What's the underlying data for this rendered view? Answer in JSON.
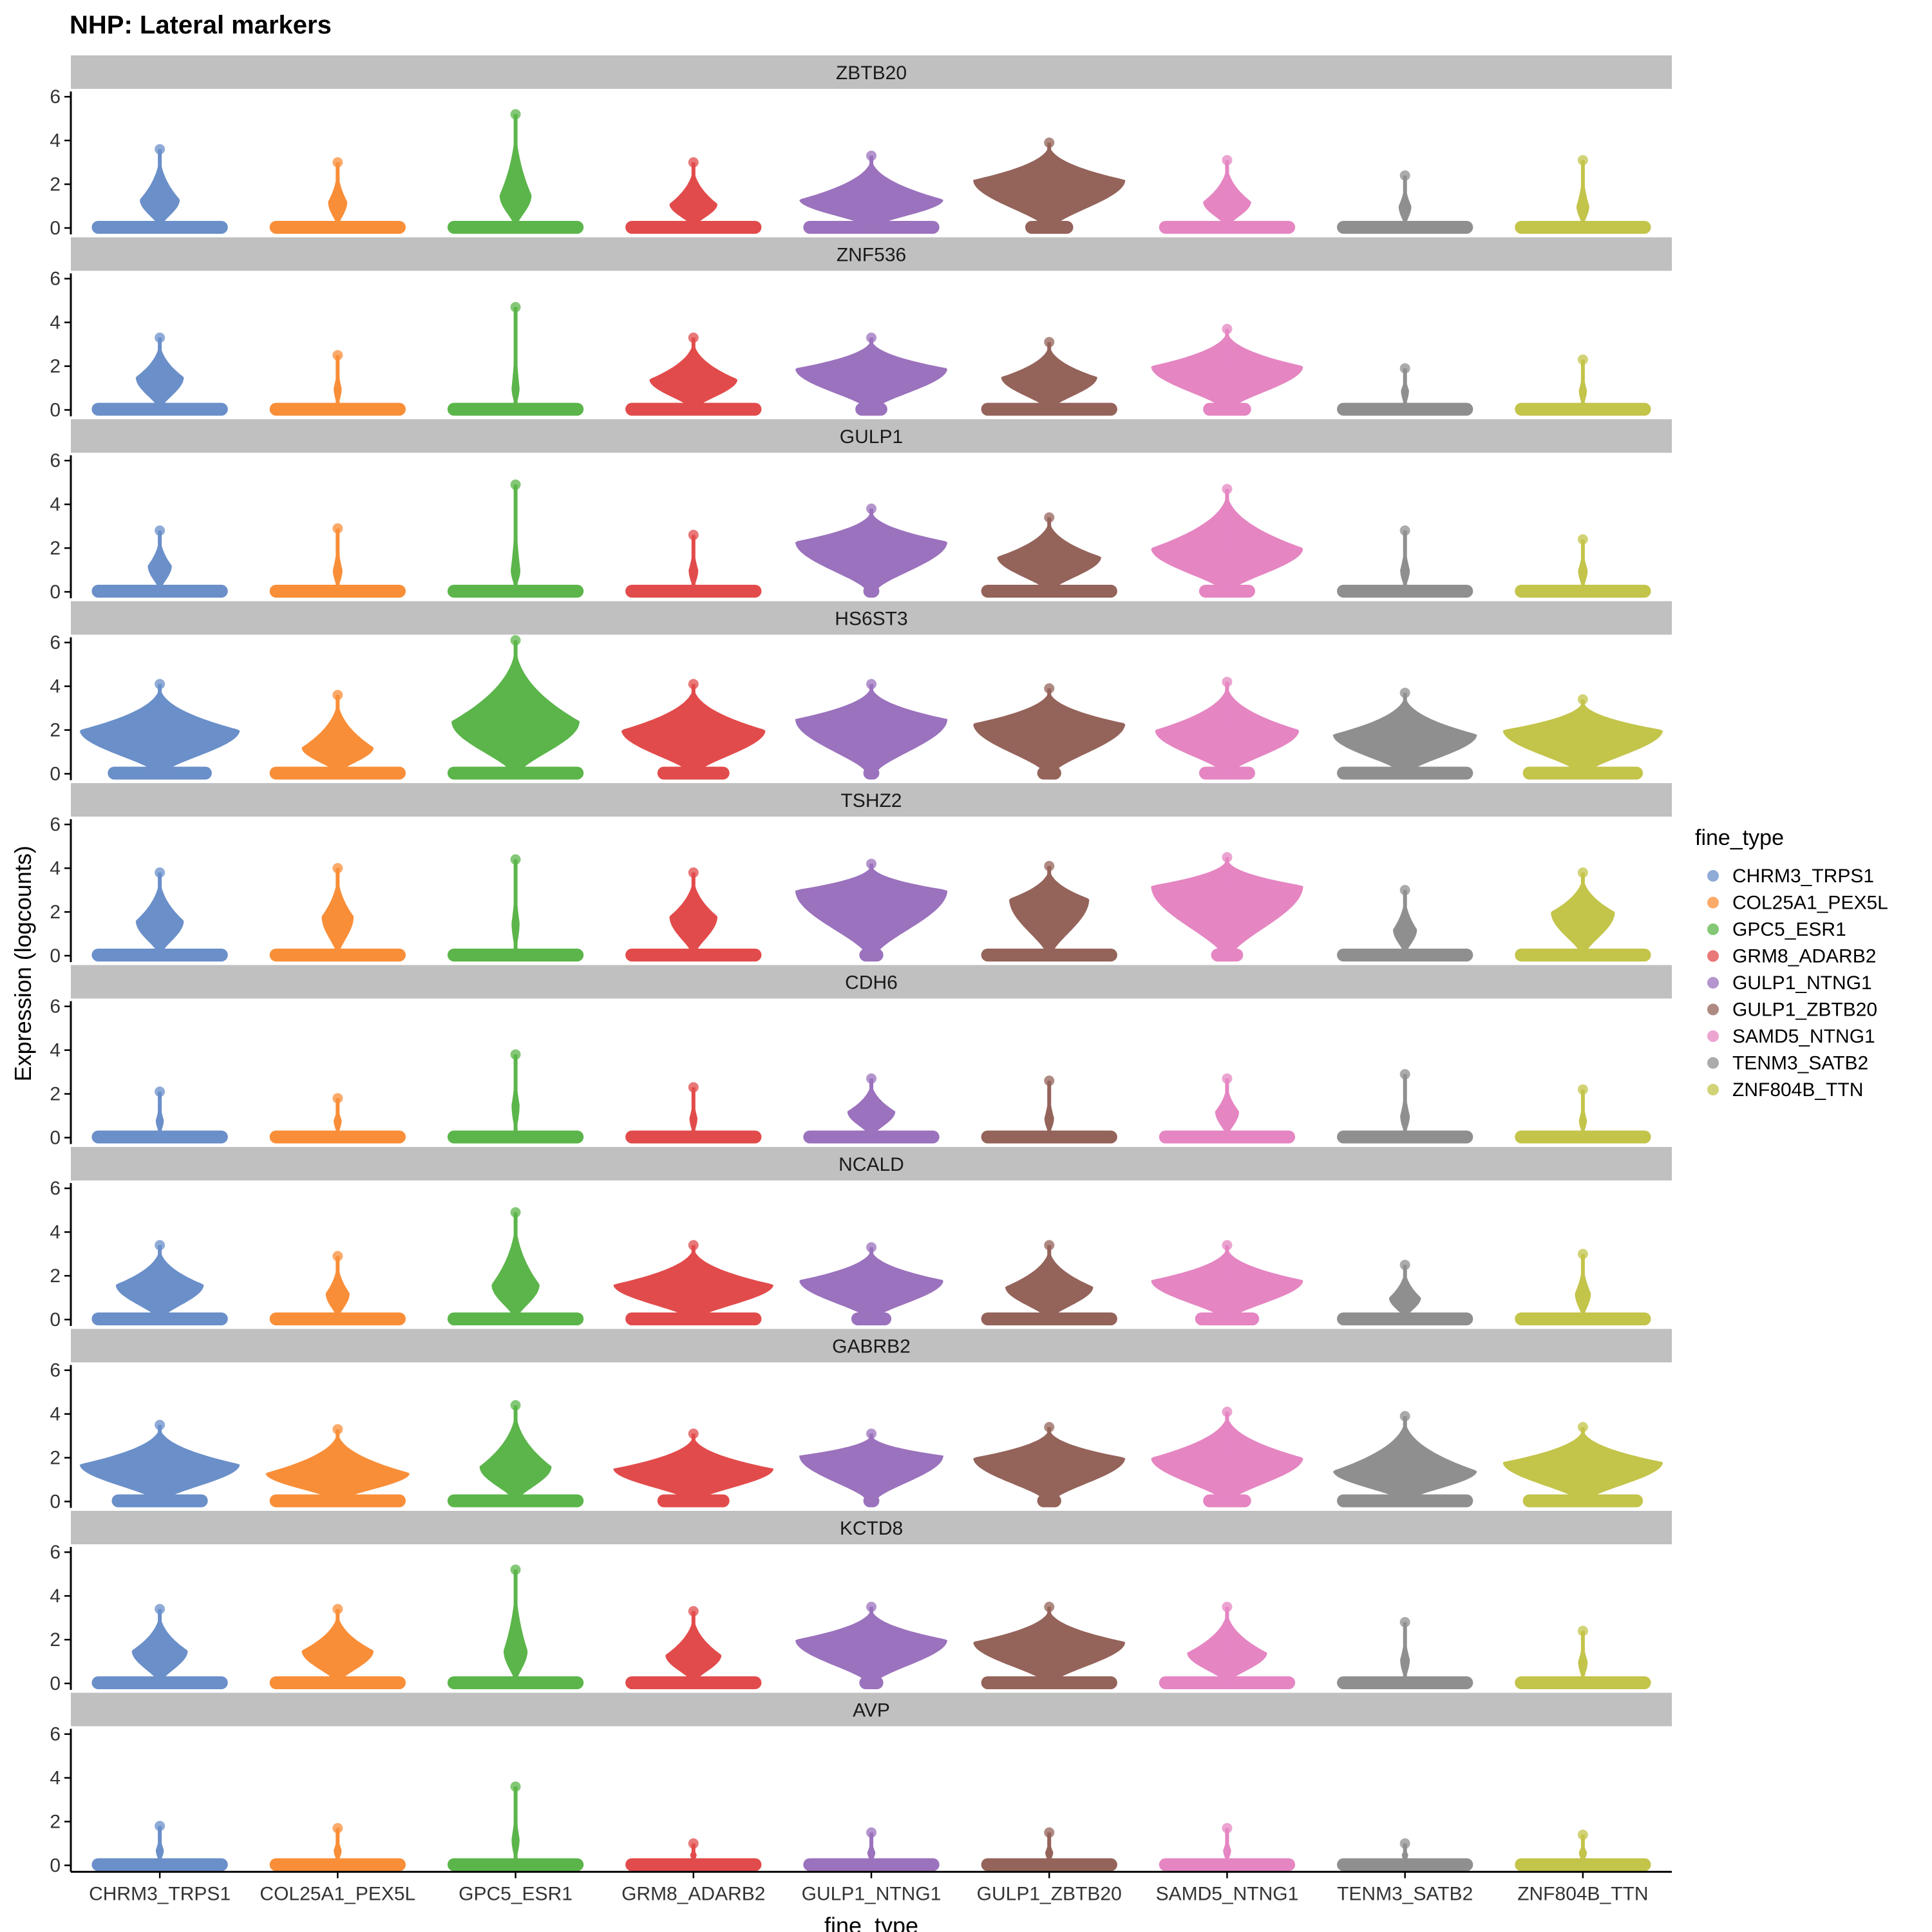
{
  "chart_data": {
    "type": "violin",
    "title": "NHP: Lateral markers",
    "xlabel": "fine_type",
    "ylabel": "Expression (logcounts)",
    "ylim": [
      0,
      6.3
    ],
    "yticks": [
      0,
      2,
      4,
      6
    ],
    "legend": {
      "title": "fine_type",
      "position": "right"
    },
    "categories": [
      "CHRM3_TRPS1",
      "COL25A1_PEX5L",
      "GPC5_ESR1",
      "GRM8_ADARB2",
      "GULP1_NTNG1",
      "GULP1_ZBTB20",
      "SAMD5_NTNG1",
      "TENM3_SATB2",
      "ZNF804B_TTN"
    ],
    "colors": [
      "#6a8fc9",
      "#f98e38",
      "#5bb54a",
      "#e24b4b",
      "#9b72bd",
      "#94635a",
      "#e585c2",
      "#8f8f8f",
      "#c3c44a"
    ],
    "panels": [
      {
        "gene": "ZBTB20",
        "violins": [
          {
            "max": 3.6,
            "mode": 1.3,
            "width": 0.25,
            "zero_width": 0.85
          },
          {
            "max": 3.0,
            "mode": 1.2,
            "width": 0.12,
            "zero_width": 0.85
          },
          {
            "max": 5.2,
            "mode": 1.5,
            "width": 0.2,
            "zero_width": 0.85
          },
          {
            "max": 3.0,
            "mode": 1.1,
            "width": 0.3,
            "zero_width": 0.85
          },
          {
            "max": 3.3,
            "mode": 1.3,
            "width": 0.9,
            "zero_width": 0.85
          },
          {
            "max": 3.9,
            "mode": 2.2,
            "width": 0.95,
            "zero_width": 0.3
          },
          {
            "max": 3.1,
            "mode": 1.2,
            "width": 0.3,
            "zero_width": 0.85
          },
          {
            "max": 2.4,
            "mode": 1.0,
            "width": 0.08,
            "zero_width": 0.85
          },
          {
            "max": 3.1,
            "mode": 1.0,
            "width": 0.08,
            "zero_width": 0.85
          }
        ]
      },
      {
        "gene": "ZNF536",
        "violins": [
          {
            "max": 3.3,
            "mode": 1.5,
            "width": 0.3,
            "zero_width": 0.85
          },
          {
            "max": 2.5,
            "mode": 1.0,
            "width": 0.05,
            "zero_width": 0.85
          },
          {
            "max": 4.7,
            "mode": 1.0,
            "width": 0.05,
            "zero_width": 0.85
          },
          {
            "max": 3.3,
            "mode": 1.4,
            "width": 0.55,
            "zero_width": 0.85
          },
          {
            "max": 3.3,
            "mode": 1.9,
            "width": 0.95,
            "zero_width": 0.2
          },
          {
            "max": 3.1,
            "mode": 1.5,
            "width": 0.6,
            "zero_width": 0.85
          },
          {
            "max": 3.7,
            "mode": 2.0,
            "width": 0.95,
            "zero_width": 0.3
          },
          {
            "max": 1.9,
            "mode": 0.9,
            "width": 0.05,
            "zero_width": 0.85
          },
          {
            "max": 2.3,
            "mode": 0.9,
            "width": 0.05,
            "zero_width": 0.85
          }
        ]
      },
      {
        "gene": "GULP1",
        "violins": [
          {
            "max": 2.8,
            "mode": 1.2,
            "width": 0.15,
            "zero_width": 0.85
          },
          {
            "max": 2.9,
            "mode": 1.0,
            "width": 0.06,
            "zero_width": 0.85
          },
          {
            "max": 4.9,
            "mode": 1.0,
            "width": 0.06,
            "zero_width": 0.85
          },
          {
            "max": 2.6,
            "mode": 1.0,
            "width": 0.06,
            "zero_width": 0.85
          },
          {
            "max": 3.8,
            "mode": 2.3,
            "width": 0.95,
            "zero_width": 0.1
          },
          {
            "max": 3.4,
            "mode": 1.6,
            "width": 0.65,
            "zero_width": 0.85
          },
          {
            "max": 4.7,
            "mode": 2.0,
            "width": 0.95,
            "zero_width": 0.35
          },
          {
            "max": 2.8,
            "mode": 1.0,
            "width": 0.06,
            "zero_width": 0.85
          },
          {
            "max": 2.4,
            "mode": 1.0,
            "width": 0.06,
            "zero_width": 0.85
          }
        ]
      },
      {
        "gene": "HS6ST3",
        "violins": [
          {
            "max": 4.1,
            "mode": 2.0,
            "width": 1.0,
            "zero_width": 0.65
          },
          {
            "max": 3.6,
            "mode": 1.2,
            "width": 0.45,
            "zero_width": 0.85
          },
          {
            "max": 6.1,
            "mode": 2.4,
            "width": 0.8,
            "zero_width": 0.85
          },
          {
            "max": 4.1,
            "mode": 2.0,
            "width": 0.9,
            "zero_width": 0.45
          },
          {
            "max": 4.1,
            "mode": 2.5,
            "width": 0.95,
            "zero_width": 0.1
          },
          {
            "max": 3.9,
            "mode": 2.3,
            "width": 0.95,
            "zero_width": 0.15
          },
          {
            "max": 4.2,
            "mode": 2.0,
            "width": 0.9,
            "zero_width": 0.35
          },
          {
            "max": 3.7,
            "mode": 1.8,
            "width": 0.9,
            "zero_width": 0.85
          },
          {
            "max": 3.4,
            "mode": 2.0,
            "width": 1.0,
            "zero_width": 0.75
          }
        ]
      },
      {
        "gene": "TSHZ2",
        "violins": [
          {
            "max": 3.8,
            "mode": 1.6,
            "width": 0.3,
            "zero_width": 0.85
          },
          {
            "max": 4.0,
            "mode": 1.8,
            "width": 0.2,
            "zero_width": 0.85
          },
          {
            "max": 4.4,
            "mode": 1.5,
            "width": 0.05,
            "zero_width": 0.85
          },
          {
            "max": 3.8,
            "mode": 1.8,
            "width": 0.3,
            "zero_width": 0.85
          },
          {
            "max": 4.2,
            "mode": 3.0,
            "width": 0.95,
            "zero_width": 0.15
          },
          {
            "max": 4.1,
            "mode": 2.6,
            "width": 0.5,
            "zero_width": 0.85
          },
          {
            "max": 4.5,
            "mode": 3.2,
            "width": 0.95,
            "zero_width": 0.2
          },
          {
            "max": 3.0,
            "mode": 1.2,
            "width": 0.15,
            "zero_width": 0.85
          },
          {
            "max": 3.8,
            "mode": 2.0,
            "width": 0.4,
            "zero_width": 0.85
          }
        ]
      },
      {
        "gene": "CDH6",
        "violins": [
          {
            "max": 2.1,
            "mode": 0.8,
            "width": 0.05,
            "zero_width": 0.85
          },
          {
            "max": 1.8,
            "mode": 0.8,
            "width": 0.05,
            "zero_width": 0.85
          },
          {
            "max": 3.8,
            "mode": 1.5,
            "width": 0.05,
            "zero_width": 0.85
          },
          {
            "max": 2.3,
            "mode": 0.9,
            "width": 0.05,
            "zero_width": 0.85
          },
          {
            "max": 2.7,
            "mode": 1.2,
            "width": 0.3,
            "zero_width": 0.85
          },
          {
            "max": 2.6,
            "mode": 0.9,
            "width": 0.06,
            "zero_width": 0.85
          },
          {
            "max": 2.7,
            "mode": 1.2,
            "width": 0.15,
            "zero_width": 0.85
          },
          {
            "max": 2.9,
            "mode": 1.0,
            "width": 0.06,
            "zero_width": 0.85
          },
          {
            "max": 2.2,
            "mode": 0.8,
            "width": 0.05,
            "zero_width": 0.85
          }
        ]
      },
      {
        "gene": "NCALD",
        "violins": [
          {
            "max": 3.4,
            "mode": 1.6,
            "width": 0.55,
            "zero_width": 0.85
          },
          {
            "max": 2.9,
            "mode": 1.2,
            "width": 0.15,
            "zero_width": 0.85
          },
          {
            "max": 4.9,
            "mode": 1.6,
            "width": 0.3,
            "zero_width": 0.85
          },
          {
            "max": 3.4,
            "mode": 1.6,
            "width": 1.0,
            "zero_width": 0.85
          },
          {
            "max": 3.3,
            "mode": 1.8,
            "width": 0.9,
            "zero_width": 0.25
          },
          {
            "max": 3.4,
            "mode": 1.5,
            "width": 0.55,
            "zero_width": 0.85
          },
          {
            "max": 3.4,
            "mode": 1.8,
            "width": 0.95,
            "zero_width": 0.4
          },
          {
            "max": 2.5,
            "mode": 1.0,
            "width": 0.2,
            "zero_width": 0.85
          },
          {
            "max": 3.0,
            "mode": 1.2,
            "width": 0.1,
            "zero_width": 0.85
          }
        ]
      },
      {
        "gene": "GABRB2",
        "violins": [
          {
            "max": 3.5,
            "mode": 1.7,
            "width": 1.0,
            "zero_width": 0.6
          },
          {
            "max": 3.3,
            "mode": 1.3,
            "width": 0.9,
            "zero_width": 0.85
          },
          {
            "max": 4.4,
            "mode": 1.6,
            "width": 0.45,
            "zero_width": 0.85
          },
          {
            "max": 3.1,
            "mode": 1.5,
            "width": 1.0,
            "zero_width": 0.45
          },
          {
            "max": 3.1,
            "mode": 2.1,
            "width": 0.9,
            "zero_width": 0.1
          },
          {
            "max": 3.4,
            "mode": 2.0,
            "width": 0.95,
            "zero_width": 0.15
          },
          {
            "max": 4.1,
            "mode": 2.0,
            "width": 0.95,
            "zero_width": 0.3
          },
          {
            "max": 3.9,
            "mode": 1.4,
            "width": 0.9,
            "zero_width": 0.85
          },
          {
            "max": 3.4,
            "mode": 1.8,
            "width": 1.0,
            "zero_width": 0.75
          }
        ]
      },
      {
        "gene": "KCTD8",
        "violins": [
          {
            "max": 3.4,
            "mode": 1.5,
            "width": 0.35,
            "zero_width": 0.85
          },
          {
            "max": 3.4,
            "mode": 1.5,
            "width": 0.45,
            "zero_width": 0.85
          },
          {
            "max": 5.2,
            "mode": 1.5,
            "width": 0.15,
            "zero_width": 0.85
          },
          {
            "max": 3.3,
            "mode": 1.3,
            "width": 0.35,
            "zero_width": 0.85
          },
          {
            "max": 3.5,
            "mode": 2.0,
            "width": 0.95,
            "zero_width": 0.15
          },
          {
            "max": 3.5,
            "mode": 1.9,
            "width": 0.95,
            "zero_width": 0.85
          },
          {
            "max": 3.5,
            "mode": 1.4,
            "width": 0.5,
            "zero_width": 0.85
          },
          {
            "max": 2.8,
            "mode": 1.1,
            "width": 0.06,
            "zero_width": 0.85
          },
          {
            "max": 2.4,
            "mode": 1.0,
            "width": 0.06,
            "zero_width": 0.85
          }
        ]
      },
      {
        "gene": "AVP",
        "violins": [
          {
            "max": 1.8,
            "mode": 0.7,
            "width": 0.05,
            "zero_width": 0.85
          },
          {
            "max": 1.7,
            "mode": 0.7,
            "width": 0.05,
            "zero_width": 0.85
          },
          {
            "max": 3.6,
            "mode": 1.2,
            "width": 0.05,
            "zero_width": 0.85
          },
          {
            "max": 1.0,
            "mode": 0.5,
            "width": 0.04,
            "zero_width": 0.85
          },
          {
            "max": 1.5,
            "mode": 0.6,
            "width": 0.05,
            "zero_width": 0.85
          },
          {
            "max": 1.5,
            "mode": 0.6,
            "width": 0.05,
            "zero_width": 0.85
          },
          {
            "max": 1.7,
            "mode": 0.7,
            "width": 0.05,
            "zero_width": 0.85
          },
          {
            "max": 1.0,
            "mode": 0.5,
            "width": 0.04,
            "zero_width": 0.85
          },
          {
            "max": 1.4,
            "mode": 0.6,
            "width": 0.05,
            "zero_width": 0.85
          }
        ]
      }
    ]
  }
}
